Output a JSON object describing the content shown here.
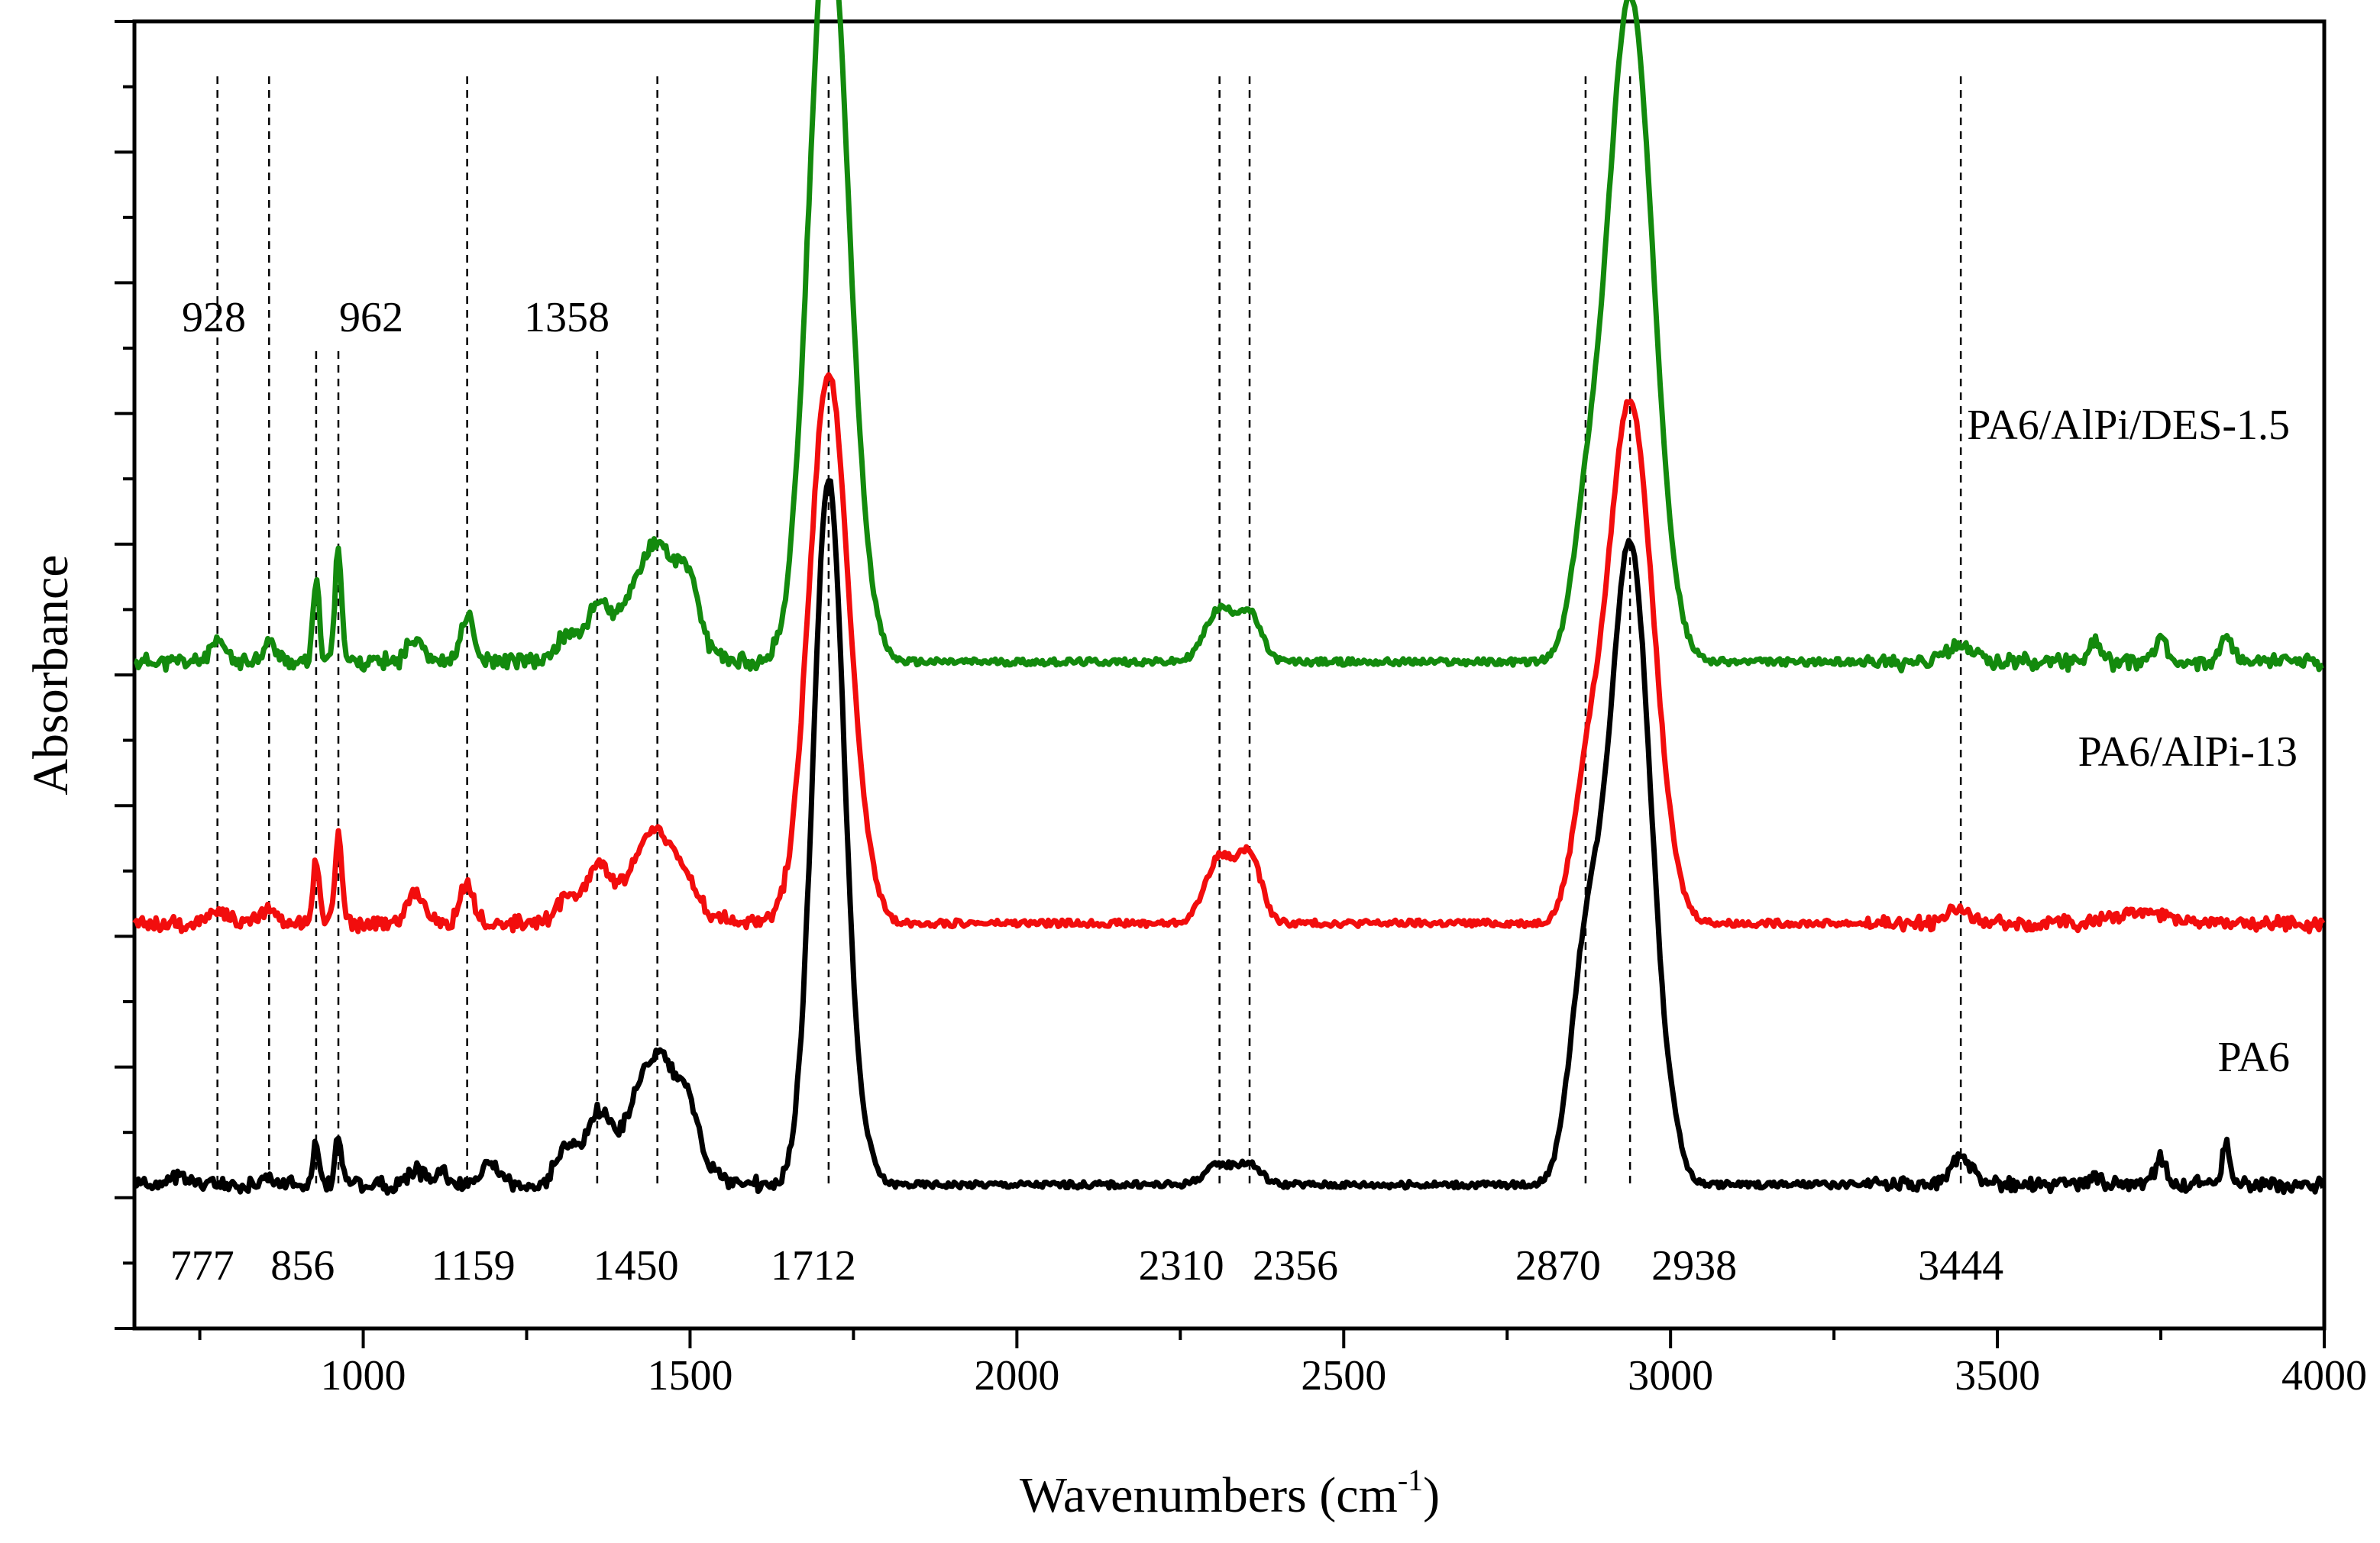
{
  "chart_data": {
    "type": "line",
    "title": "",
    "xlabel": "Wavenumbers (cm",
    "xlabel_sup": "-1",
    "xlabel_close": ")",
    "ylabel": "Absorbance",
    "xlim": [
      650,
      4000
    ],
    "ylim": [
      0,
      100
    ],
    "x_ticks": [
      1000,
      1500,
      2000,
      2500,
      3000,
      3500,
      4000
    ],
    "x_tick_labels": [
      "1000",
      "1500",
      "2000",
      "2500",
      "3000",
      "3500",
      "4000"
    ],
    "y_ticks_shown": false,
    "series": [
      {
        "name": "PA6/AlPi/DES-1.5",
        "color": "#138a0d",
        "baseline": 51,
        "peaks": [
          [
            777,
            1.5,
            12
          ],
          [
            856,
            1.5,
            10
          ],
          [
            928,
            6,
            5
          ],
          [
            962,
            9,
            5
          ],
          [
            1080,
            2,
            12
          ],
          [
            1159,
            3.5,
            10
          ],
          [
            1310,
            2,
            15
          ],
          [
            1358,
            4,
            18
          ],
          [
            1450,
            9,
            40
          ],
          [
            1500,
            3,
            12
          ],
          [
            1712,
            58,
            30
          ],
          [
            1770,
            1.5,
            20
          ],
          [
            2310,
            4,
            22
          ],
          [
            2356,
            3.5,
            18
          ],
          [
            2870,
            8,
            22
          ],
          [
            2938,
            51,
            35
          ],
          [
            3444,
            1.5,
            18
          ],
          [
            3650,
            1.5,
            8
          ],
          [
            3750,
            2,
            8
          ],
          [
            3850,
            2,
            8
          ]
        ]
      },
      {
        "name": "PA6/AlPi-13",
        "color": "#f20d0d",
        "baseline": 31,
        "peaks": [
          [
            777,
            1,
            12
          ],
          [
            856,
            1,
            10
          ],
          [
            928,
            5,
            5
          ],
          [
            962,
            7,
            5
          ],
          [
            1080,
            2.5,
            12
          ],
          [
            1159,
            3,
            10
          ],
          [
            1310,
            2,
            15
          ],
          [
            1358,
            4,
            18
          ],
          [
            1450,
            7,
            40
          ],
          [
            1712,
            42,
            30
          ],
          [
            1770,
            1.5,
            20
          ],
          [
            2310,
            5,
            22
          ],
          [
            2356,
            5,
            18
          ],
          [
            2870,
            8,
            22
          ],
          [
            2938,
            40,
            35
          ],
          [
            3444,
            1,
            18
          ],
          [
            3720,
            0.8,
            40
          ]
        ]
      },
      {
        "name": "PA6",
        "color": "#000000",
        "baseline": 11,
        "peaks": [
          [
            720,
            1,
            10
          ],
          [
            856,
            0.6,
            10
          ],
          [
            928,
            3,
            5
          ],
          [
            962,
            4,
            5
          ],
          [
            1080,
            1.2,
            12
          ],
          [
            1120,
            1.2,
            10
          ],
          [
            1195,
            1.5,
            15
          ],
          [
            1310,
            3,
            15
          ],
          [
            1358,
            5,
            18
          ],
          [
            1450,
            10,
            40
          ],
          [
            1500,
            2.5,
            12
          ],
          [
            1712,
            54,
            24
          ],
          [
            1770,
            1.5,
            15
          ],
          [
            2310,
            1.5,
            22
          ],
          [
            2356,
            1.5,
            18
          ],
          [
            2870,
            16,
            24
          ],
          [
            2938,
            49,
            32
          ],
          [
            3010,
            1,
            10
          ],
          [
            3444,
            2,
            18
          ],
          [
            3650,
            0.8,
            8
          ],
          [
            3750,
            2,
            8
          ],
          [
            3850,
            3,
            6
          ]
        ]
      }
    ],
    "peak_markers": [
      {
        "x": 777,
        "label": "777",
        "position": "bottom"
      },
      {
        "x": 856,
        "label": "856",
        "position": "bottom"
      },
      {
        "x": 928,
        "label": "928",
        "position": "top"
      },
      {
        "x": 962,
        "label": "962",
        "position": "top"
      },
      {
        "x": 1159,
        "label": "1159",
        "position": "bottom"
      },
      {
        "x": 1358,
        "label": "1358",
        "position": "top"
      },
      {
        "x": 1450,
        "label": "1450",
        "position": "bottom"
      },
      {
        "x": 1712,
        "label": "1712",
        "position": "bottom"
      },
      {
        "x": 2310,
        "label": "2310",
        "position": "bottom"
      },
      {
        "x": 2356,
        "label": "2356",
        "position": "bottom"
      },
      {
        "x": 2870,
        "label": "2870",
        "position": "bottom"
      },
      {
        "x": 2938,
        "label": "2938",
        "position": "bottom"
      },
      {
        "x": 3444,
        "label": "3444",
        "position": "bottom"
      }
    ]
  }
}
